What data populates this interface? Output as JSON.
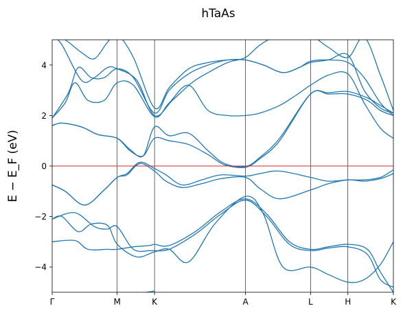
{
  "chart_data": {
    "type": "line",
    "title": "hTaAs",
    "ylabel": "E − E_F (eV)",
    "xlabel": "",
    "xlim": [
      0,
      10.5
    ],
    "ylim": [
      -5,
      5
    ],
    "grid": false,
    "yticks": [
      -4,
      -2,
      0,
      2,
      4
    ],
    "kpoints": [
      {
        "label": "Γ",
        "x": 0
      },
      {
        "label": "M",
        "x": 2
      },
      {
        "label": "K",
        "x": 3.15
      },
      {
        "label": "A",
        "x": 5.95
      },
      {
        "label": "L",
        "x": 7.95
      },
      {
        "label": "H",
        "x": 9.1
      },
      {
        "label": "K",
        "x": 10.5
      }
    ],
    "fermi_level": 0,
    "band_color": "#1f77b4",
    "fermi_color": "#d62728",
    "bands": [
      {
        "x": [
          0,
          0.4,
          1,
          1.6,
          2,
          2.3,
          2.6,
          2.9,
          3.15
        ],
        "y": [
          -5.2,
          -5.2,
          -5.2,
          -5.2,
          -5.2,
          -5.1,
          -5.05,
          -5.0,
          -4.95
        ]
      },
      {
        "x": [
          0,
          0.7,
          1.1,
          1.7,
          2.0,
          2.5,
          3.0,
          3.15,
          3.6,
          4.4,
          5.2,
          5.95,
          6.6,
          7.3,
          7.95,
          8.5,
          9.1,
          9.7,
          10.1,
          10.5
        ],
        "y": [
          -3.0,
          -2.95,
          -3.3,
          -3.3,
          -3.3,
          -3.2,
          -3.15,
          -3.1,
          -3.15,
          -2.6,
          -1.8,
          -1.3,
          -1.9,
          -3.0,
          -3.3,
          -3.2,
          -3.1,
          -3.3,
          -4.2,
          -5.0
        ]
      },
      {
        "x": [
          0,
          0.7,
          1.3,
          1.7,
          2.0,
          2.5,
          3.0,
          3.15,
          3.6,
          4.4,
          5.2,
          5.95,
          6.6,
          7.3,
          7.95,
          8.5,
          9.1,
          9.7,
          10.1,
          10.5
        ],
        "y": [
          -2.1,
          -1.85,
          -2.4,
          -2.5,
          -2.4,
          -3.3,
          -3.35,
          -3.35,
          -3.3,
          -2.7,
          -1.9,
          -1.35,
          -2.0,
          -3.1,
          -3.35,
          -3.25,
          -3.2,
          -3.5,
          -4.5,
          -4.8
        ]
      },
      {
        "x": [
          0,
          0.3,
          0.8,
          1.2,
          1.7,
          2.0,
          2.6,
          3.15,
          3.6,
          4.2,
          5.0,
          5.95,
          6.5,
          7.1,
          7.95,
          8.5,
          9.1,
          9.6,
          10.1,
          10.5
        ],
        "y": [
          -2.1,
          -2.0,
          -2.6,
          -2.3,
          -2.35,
          -3.1,
          -3.6,
          -3.4,
          -3.3,
          -3.8,
          -2.3,
          -1.2,
          -1.9,
          -4.0,
          -4.0,
          -4.3,
          -4.6,
          -4.5,
          -3.9,
          -3.0
        ]
      },
      {
        "x": [
          0,
          0.4,
          1.0,
          1.6,
          2.0,
          2.3,
          2.7,
          3.15,
          3.5,
          4.0,
          4.6,
          5.2,
          5.95,
          6.4,
          7.0,
          7.95,
          8.5,
          9.1,
          9.6,
          10.1,
          10.5
        ],
        "y": [
          -0.75,
          -1.0,
          -1.55,
          -0.95,
          -0.45,
          -0.3,
          0.15,
          -0.1,
          -0.35,
          -0.75,
          -0.55,
          -0.35,
          -0.4,
          -0.3,
          -0.2,
          -0.45,
          -0.6,
          -0.55,
          -0.55,
          -0.45,
          -0.15
        ]
      },
      {
        "x": [
          0,
          0.4,
          1.0,
          1.6,
          2.0,
          2.3,
          2.7,
          3.15,
          3.5,
          4.0,
          4.6,
          5.2,
          5.95,
          6.4,
          7.0,
          7.95,
          8.5,
          9.1,
          9.6,
          10.1,
          10.5
        ],
        "y": [
          -0.75,
          -1.0,
          -1.55,
          -0.95,
          -0.45,
          -0.35,
          0.1,
          -0.2,
          -0.6,
          -0.85,
          -0.7,
          -0.5,
          -0.45,
          -0.9,
          -1.3,
          -0.95,
          -0.7,
          -0.55,
          -0.6,
          -0.5,
          -0.3
        ]
      },
      {
        "x": [
          0,
          0.3,
          0.9,
          1.4,
          2.0,
          2.4,
          2.8,
          3.15,
          3.6,
          4.2,
          4.8,
          5.3,
          5.95,
          6.4,
          7.0,
          7.95,
          8.5,
          9.1,
          9.7,
          10.1,
          10.5
        ],
        "y": [
          1.6,
          1.7,
          1.55,
          1.25,
          1.1,
          0.6,
          0.4,
          1.1,
          1.0,
          0.85,
          0.45,
          0.05,
          -0.05,
          0.3,
          1.0,
          2.85,
          2.85,
          2.85,
          2.6,
          2.2,
          2.0
        ]
      },
      {
        "x": [
          0,
          0.3,
          0.9,
          1.4,
          2.0,
          2.4,
          2.8,
          3.15,
          3.6,
          4.2,
          4.8,
          5.3,
          5.95,
          6.4,
          7.0,
          7.95,
          8.5,
          9.1,
          9.7,
          10.1,
          10.5
        ],
        "y": [
          1.6,
          1.7,
          1.55,
          1.25,
          1.1,
          0.65,
          0.4,
          1.55,
          1.2,
          1.3,
          0.6,
          0.1,
          -0.02,
          0.35,
          1.1,
          2.85,
          2.9,
          2.95,
          2.7,
          2.4,
          2.1
        ]
      },
      {
        "x": [
          0,
          0.4,
          0.7,
          1.1,
          1.6,
          2.0,
          2.5,
          3.15,
          3.6,
          4.2,
          4.8,
          5.4,
          5.95,
          6.4,
          7.0,
          7.5,
          7.95,
          8.5,
          9.1,
          9.6,
          10.1,
          10.5
        ],
        "y": [
          1.9,
          2.5,
          3.3,
          2.6,
          2.6,
          3.3,
          3.2,
          1.95,
          2.5,
          3.2,
          2.2,
          2.0,
          2.0,
          2.1,
          2.4,
          2.8,
          3.2,
          3.6,
          3.65,
          2.5,
          1.5,
          1.1
        ]
      },
      {
        "x": [
          0,
          0.5,
          0.8,
          1.2,
          1.6,
          2.0,
          2.5,
          3.15,
          3.6,
          4.2,
          4.8,
          5.4,
          5.95,
          6.5,
          7.1,
          7.6,
          7.95,
          8.5,
          9.1,
          9.6,
          10.1,
          10.5
        ],
        "y": [
          1.9,
          2.9,
          3.9,
          3.5,
          3.5,
          3.85,
          3.5,
          2.1,
          3.0,
          3.65,
          4.0,
          4.2,
          4.2,
          4.0,
          3.7,
          3.9,
          4.15,
          4.2,
          4.1,
          3.5,
          2.5,
          2.0
        ]
      },
      {
        "x": [
          0,
          0.4,
          0.9,
          1.3,
          1.7,
          2.0,
          2.5,
          3.15,
          3.6,
          4.2,
          4.8,
          5.4,
          5.95,
          6.5,
          7.1,
          7.6,
          7.95,
          8.5,
          9.1,
          9.6,
          10.1,
          10.5
        ],
        "y": [
          5.2,
          5.0,
          4.5,
          4.25,
          4.9,
          5.2,
          4.3,
          2.3,
          3.1,
          3.85,
          4.1,
          4.2,
          4.2,
          4.0,
          3.7,
          3.9,
          4.1,
          4.2,
          4.4,
          3.0,
          2.3,
          2.1
        ]
      },
      {
        "x": [
          0,
          0.3,
          0.9,
          1.3,
          1.7,
          2.0,
          2.6,
          3.15,
          3.7,
          4.3,
          4.8,
          5.4,
          5.95,
          6.4,
          7.0,
          7.6,
          7.95,
          8.5,
          9.1,
          9.6,
          10.1,
          10.5
        ],
        "y": [
          5.2,
          4.8,
          3.4,
          3.5,
          3.9,
          3.85,
          3.4,
          2.0,
          2.6,
          3.3,
          3.7,
          4.1,
          4.3,
          4.8,
          5.2,
          5.2,
          5.2,
          4.7,
          4.3,
          5.1,
          3.6,
          2.2
        ]
      }
    ]
  }
}
